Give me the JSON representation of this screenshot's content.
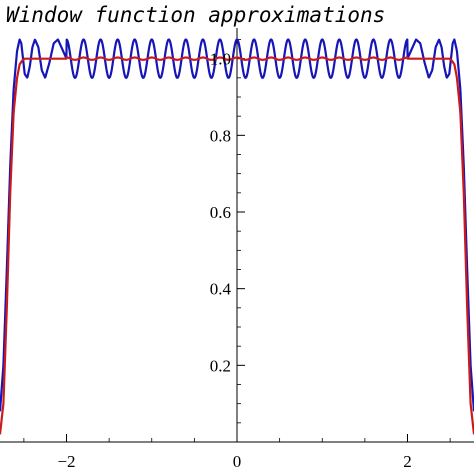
{
  "chart_data": {
    "type": "line",
    "title": "Window function approximations",
    "xlabel": "",
    "ylabel": "",
    "xlim": [
      -2.78,
      2.78
    ],
    "ylim": [
      0,
      1.08
    ],
    "x_ticks": [
      -2,
      0,
      2
    ],
    "x_tick_labels": [
      "−2",
      "0",
      "2"
    ],
    "y_ticks": [
      0.2,
      0.4,
      0.6,
      0.8,
      1.0
    ],
    "y_tick_labels": [
      "0.2",
      "0.4",
      "0.6",
      "0.8",
      "1.0"
    ],
    "grid": false,
    "legend": "none",
    "series": [
      {
        "color": "#1515b8",
        "description": "oscillating approximation (Gibbs ripple)",
        "x": [
          -2.78,
          -2.74,
          -2.7,
          -2.66,
          -2.62,
          -2.58,
          -2.55,
          -2.53,
          -2.51,
          -2.49,
          -2.46,
          -2.43,
          -2.4,
          -2.37,
          -2.33,
          -2.29,
          -2.25,
          -2.2,
          -2.15,
          -2.1,
          -2.0,
          -1.9,
          -1.5,
          -1.0,
          -0.5,
          0.0,
          0.5,
          1.0,
          1.5,
          1.9,
          2.0,
          2.1,
          2.15,
          2.2,
          2.25,
          2.29,
          2.33,
          2.37,
          2.4,
          2.43,
          2.46,
          2.49,
          2.51,
          2.53,
          2.55,
          2.58,
          2.62,
          2.66,
          2.7,
          2.74,
          2.78
        ],
        "y": [
          0.08,
          0.2,
          0.45,
          0.72,
          0.92,
          1.02,
          1.05,
          1.04,
          1.0,
          0.96,
          0.95,
          0.98,
          1.03,
          1.05,
          1.03,
          0.97,
          0.95,
          0.99,
          1.04,
          1.05,
          1.0,
          1.0,
          1.0,
          1.0,
          1.0,
          1.0,
          1.0,
          1.0,
          1.0,
          1.0,
          1.0,
          1.05,
          1.04,
          0.99,
          0.95,
          0.97,
          1.03,
          1.05,
          1.03,
          0.98,
          0.95,
          0.96,
          1.0,
          1.04,
          1.05,
          1.02,
          0.92,
          0.72,
          0.45,
          0.2,
          0.08
        ],
        "ripple_amplitude": 0.05,
        "ripple_period": 0.2
      },
      {
        "color": "#cc1a1a",
        "description": "smooth approximation",
        "x": [
          -2.78,
          -2.74,
          -2.7,
          -2.66,
          -2.62,
          -2.58,
          -2.55,
          -2.52,
          -2.49,
          -2.45,
          -2.4,
          -2.3,
          -2.0,
          -1.5,
          -1.0,
          -0.5,
          0.0,
          0.5,
          1.0,
          1.5,
          2.0,
          2.3,
          2.4,
          2.45,
          2.49,
          2.52,
          2.55,
          2.58,
          2.62,
          2.66,
          2.7,
          2.74,
          2.78
        ],
        "y": [
          0.02,
          0.1,
          0.35,
          0.65,
          0.86,
          0.95,
          0.985,
          0.995,
          1.0,
          1.0,
          1.0,
          1.0,
          1.0,
          1.0,
          1.0,
          1.0,
          1.0,
          1.0,
          1.0,
          1.0,
          1.0,
          1.0,
          1.0,
          1.0,
          1.0,
          0.995,
          0.985,
          0.95,
          0.86,
          0.65,
          0.35,
          0.1,
          0.02
        ],
        "ripple_amplitude": 0.003,
        "ripple_period": 0.2
      }
    ]
  }
}
